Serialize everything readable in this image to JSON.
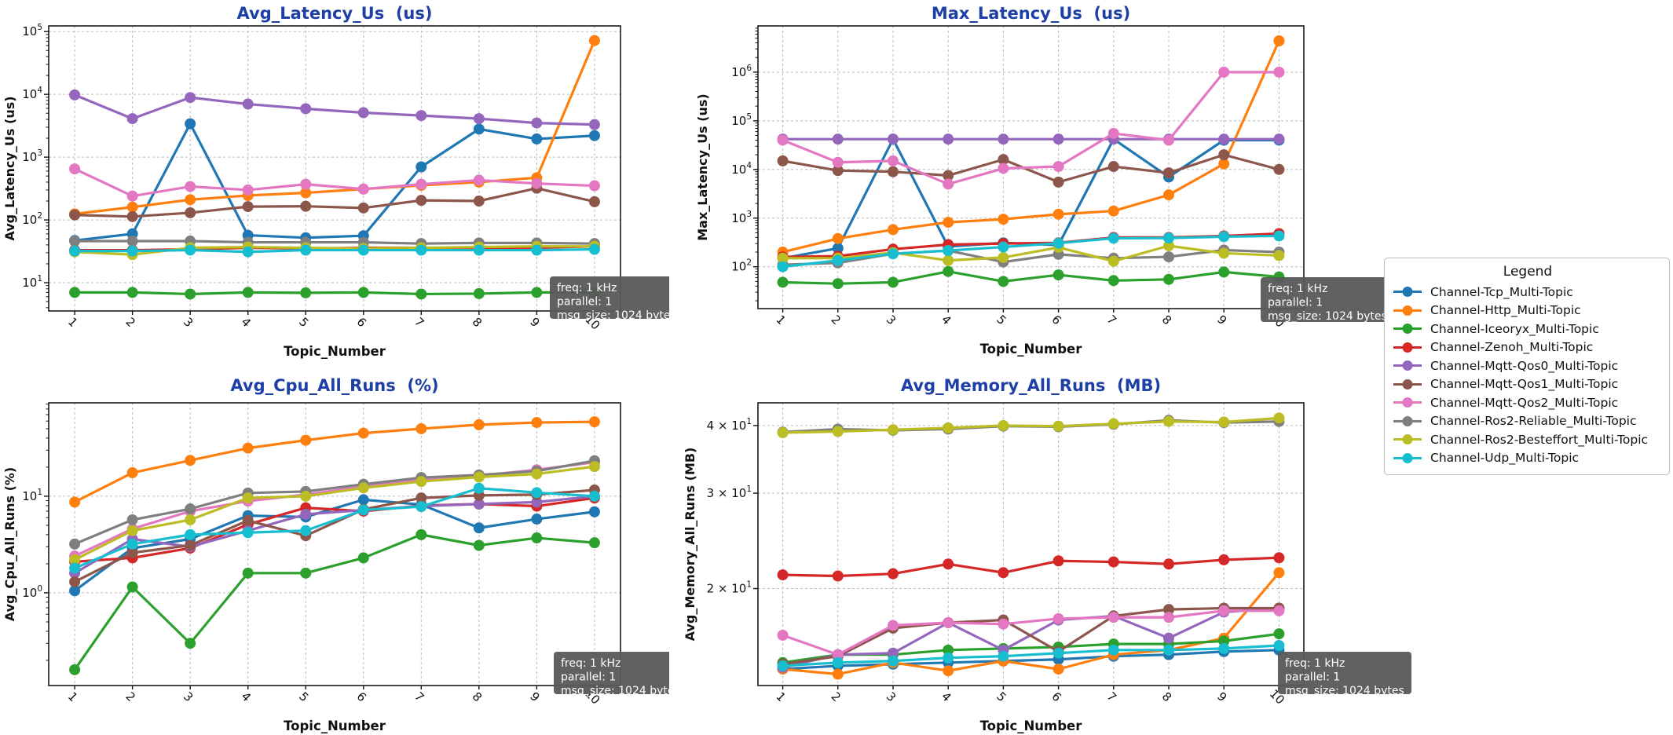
{
  "figure": {
    "title_color": "#1e3fa5",
    "annotation_lines": [
      "freq: 1 kHz",
      "parallel: 1",
      "msg_size: 1024 bytes"
    ],
    "annotation_bg": "#585858",
    "annotation_text_color": "#ffffff",
    "grid_color": "#bbbbbb",
    "frame_color": "#1a1a1a"
  },
  "legend": {
    "title": "Legend",
    "items": [
      {
        "label": "Channel-Tcp_Multi-Topic",
        "color": "#1f77b4"
      },
      {
        "label": "Channel-Http_Multi-Topic",
        "color": "#ff7f0e"
      },
      {
        "label": "Channel-Iceoryx_Multi-Topic",
        "color": "#2ca02c"
      },
      {
        "label": "Channel-Zenoh_Multi-Topic",
        "color": "#d62728"
      },
      {
        "label": "Channel-Mqtt-Qos0_Multi-Topic",
        "color": "#9467bd"
      },
      {
        "label": "Channel-Mqtt-Qos1_Multi-Topic",
        "color": "#8c564b"
      },
      {
        "label": "Channel-Mqtt-Qos2_Multi-Topic",
        "color": "#e377c2"
      },
      {
        "label": "Channel-Ros2-Reliable_Multi-Topic",
        "color": "#7f7f7f"
      },
      {
        "label": "Channel-Ros2-Besteffort_Multi-Topic",
        "color": "#bcbd22"
      },
      {
        "label": "Channel-Udp_Multi-Topic",
        "color": "#17becf"
      }
    ]
  },
  "chart_data": [
    {
      "type": "line",
      "title": "Avg_Latency_Us  (us)",
      "xlabel": "Topic_Number",
      "ylabel": "Avg_Latency_Us (us)",
      "yscale": "log",
      "grid": true,
      "x": [
        1,
        2,
        3,
        4,
        5,
        6,
        7,
        8,
        9,
        10
      ],
      "ylim_exp": [
        0.55,
        5.09
      ],
      "yticks": [
        {
          "v": 100000,
          "pre": "",
          "exp": "5"
        },
        {
          "v": 10000,
          "pre": "",
          "exp": "4"
        },
        {
          "v": 1000,
          "pre": "",
          "exp": "3"
        },
        {
          "v": 100,
          "pre": "",
          "exp": "2"
        },
        {
          "v": 10,
          "pre": "",
          "exp": "1"
        }
      ],
      "series": [
        {
          "name": "Channel-Tcp_Multi-Topic",
          "values": [
            47,
            60,
            3400,
            57,
            52,
            56,
            700,
            2800,
            1950,
            2200
          ]
        },
        {
          "name": "Channel-Http_Multi-Topic",
          "values": [
            125,
            160,
            210,
            245,
            270,
            310,
            355,
            400,
            470,
            72000
          ]
        },
        {
          "name": "Channel-Iceoryx_Multi-Topic",
          "values": [
            7,
            7,
            6.6,
            7,
            6.9,
            7,
            6.6,
            6.7,
            7,
            7
          ]
        },
        {
          "name": "Channel-Zenoh_Multi-Topic",
          "values": [
            33,
            33,
            34,
            36,
            35,
            36,
            36,
            36,
            36,
            38
          ]
        },
        {
          "name": "Channel-Mqtt-Qos0_Multi-Topic",
          "values": [
            9800,
            4100,
            8900,
            7000,
            5900,
            5100,
            4600,
            4100,
            3500,
            3300
          ]
        },
        {
          "name": "Channel-Mqtt-Qos1_Multi-Topic",
          "values": [
            120,
            113,
            130,
            163,
            165,
            155,
            205,
            200,
            320,
            195
          ]
        },
        {
          "name": "Channel-Mqtt-Qos2_Multi-Topic",
          "values": [
            650,
            240,
            340,
            300,
            370,
            310,
            370,
            430,
            380,
            350
          ]
        },
        {
          "name": "Channel-Ros2-Reliable_Multi-Topic",
          "values": [
            46,
            46,
            46,
            44,
            44,
            44,
            42,
            43,
            43,
            42
          ]
        },
        {
          "name": "Channel-Ros2-Besteffort_Multi-Topic",
          "values": [
            31,
            28,
            36,
            37,
            36,
            35,
            36,
            37,
            38,
            38
          ]
        },
        {
          "name": "Channel-Udp_Multi-Topic",
          "values": [
            32,
            32,
            33,
            31,
            33,
            33,
            33,
            33,
            33,
            34
          ]
        }
      ]
    },
    {
      "type": "line",
      "title": "Max_Latency_Us  (us)",
      "xlabel": "Topic_Number",
      "ylabel": "Max_Latency_Us (us)",
      "yscale": "log",
      "grid": true,
      "x": [
        1,
        2,
        3,
        4,
        5,
        6,
        7,
        8,
        9,
        10
      ],
      "ylim_exp": [
        1.14,
        6.95
      ],
      "yticks": [
        {
          "v": 1000000,
          "pre": "",
          "exp": "6"
        },
        {
          "v": 100000,
          "pre": "",
          "exp": "5"
        },
        {
          "v": 10000,
          "pre": "",
          "exp": "4"
        },
        {
          "v": 1000,
          "pre": "",
          "exp": "3"
        },
        {
          "v": 100,
          "pre": "",
          "exp": "2"
        }
      ],
      "series": [
        {
          "name": "Channel-Tcp_Multi-Topic",
          "values": [
            150,
            240,
            42000,
            260,
            310,
            280,
            42000,
            7000,
            40000,
            40000
          ]
        },
        {
          "name": "Channel-Http_Multi-Topic",
          "values": [
            200,
            380,
            580,
            820,
            950,
            1200,
            1400,
            3000,
            13000,
            4400000
          ]
        },
        {
          "name": "Channel-Iceoryx_Multi-Topic",
          "values": [
            48,
            45,
            48,
            80,
            50,
            68,
            52,
            55,
            78,
            62
          ]
        },
        {
          "name": "Channel-Zenoh_Multi-Topic",
          "values": [
            160,
            165,
            230,
            285,
            300,
            310,
            400,
            400,
            430,
            480
          ]
        },
        {
          "name": "Channel-Mqtt-Qos0_Multi-Topic",
          "values": [
            42000,
            42000,
            42000,
            42000,
            42000,
            42000,
            42000,
            42000,
            42000,
            42000
          ]
        },
        {
          "name": "Channel-Mqtt-Qos1_Multi-Topic",
          "values": [
            15000,
            9500,
            9000,
            7500,
            16000,
            5500,
            11500,
            8500,
            20000,
            10000
          ]
        },
        {
          "name": "Channel-Mqtt-Qos2_Multi-Topic",
          "values": [
            40000,
            14000,
            15000,
            5000,
            10500,
            11500,
            55000,
            40000,
            1000000,
            1000000
          ]
        },
        {
          "name": "Channel-Ros2-Reliable_Multi-Topic",
          "values": [
            110,
            120,
            185,
            215,
            125,
            180,
            150,
            160,
            220,
            200
          ]
        },
        {
          "name": "Channel-Ros2-Besteffort_Multi-Topic",
          "values": [
            150,
            150,
            195,
            135,
            155,
            250,
            130,
            270,
            190,
            170
          ]
        },
        {
          "name": "Channel-Udp_Multi-Topic",
          "values": [
            100,
            135,
            185,
            215,
            255,
            305,
            385,
            390,
            415,
            430
          ]
        }
      ]
    },
    {
      "type": "line",
      "title": "Avg_Cpu_All_Runs  (%)",
      "xlabel": "Topic_Number",
      "ylabel": "Avg_Cpu_All_Runs (%)",
      "yscale": "log",
      "grid": true,
      "x": [
        1,
        2,
        3,
        4,
        5,
        6,
        7,
        8,
        9,
        10
      ],
      "ylim_exp": [
        -0.96,
        1.967
      ],
      "yticks": [
        {
          "v": 10,
          "pre": "",
          "exp": "1"
        },
        {
          "v": 1,
          "pre": "",
          "exp": "0"
        }
      ],
      "series": [
        {
          "name": "Channel-Tcp_Multi-Topic",
          "values": [
            1.05,
            2.9,
            3.6,
            6.3,
            6.1,
            9.2,
            8.2,
            4.7,
            5.8,
            6.9
          ]
        },
        {
          "name": "Channel-Http_Multi-Topic",
          "values": [
            8.7,
            17.5,
            23.5,
            31.5,
            38,
            45,
            50,
            55,
            58,
            59
          ]
        },
        {
          "name": "Channel-Iceoryx_Multi-Topic",
          "values": [
            0.16,
            1.15,
            0.3,
            1.6,
            1.6,
            2.3,
            4.0,
            3.1,
            3.7,
            3.3
          ]
        },
        {
          "name": "Channel-Zenoh_Multi-Topic",
          "values": [
            2.1,
            2.3,
            2.9,
            5.1,
            7.6,
            7.0,
            8.0,
            8.3,
            7.9,
            9.6
          ]
        },
        {
          "name": "Channel-Mqtt-Qos0_Multi-Topic",
          "values": [
            1.6,
            3.6,
            3.0,
            4.4,
            6.5,
            7.2,
            7.9,
            8.3,
            8.7,
            10.0
          ]
        },
        {
          "name": "Channel-Mqtt-Qos1_Multi-Topic",
          "values": [
            1.3,
            2.6,
            3.1,
            5.6,
            3.9,
            7.3,
            9.6,
            10.2,
            10.4,
            11.6
          ]
        },
        {
          "name": "Channel-Mqtt-Qos2_Multi-Topic",
          "values": [
            2.4,
            4.6,
            7.0,
            8.9,
            10.4,
            12.6,
            14.8,
            16.3,
            18.8,
            22.5
          ]
        },
        {
          "name": "Channel-Ros2-Reliable_Multi-Topic",
          "values": [
            3.2,
            5.7,
            7.4,
            10.8,
            11.2,
            13.3,
            15.6,
            16.6,
            18.2,
            23.3
          ]
        },
        {
          "name": "Channel-Ros2-Besteffort_Multi-Topic",
          "values": [
            2.2,
            4.4,
            5.7,
            9.6,
            10.0,
            12.2,
            14.2,
            15.8,
            17.0,
            20.3
          ]
        },
        {
          "name": "Channel-Udp_Multi-Topic",
          "values": [
            1.8,
            3.2,
            4.0,
            4.2,
            4.4,
            7.2,
            7.8,
            12.1,
            10.9,
            10.0
          ]
        }
      ]
    },
    {
      "type": "line",
      "title": "Avg_Memory_All_Runs  (MB)",
      "xlabel": "Topic_Number",
      "ylabel": "Avg_Memory_All_Runs (MB)",
      "yscale": "log",
      "grid": true,
      "x": [
        1,
        2,
        3,
        4,
        5,
        6,
        7,
        8,
        9,
        10
      ],
      "ylim_exp": [
        1.122,
        1.644
      ],
      "yticks": [
        {
          "v": 40,
          "pre": "4 × ",
          "exp": "1"
        },
        {
          "v": 30,
          "pre": "3 × ",
          "exp": "1"
        },
        {
          "v": 20,
          "pre": "2 × ",
          "exp": "1"
        }
      ],
      "series": [
        {
          "name": "Channel-Tcp_Multi-Topic",
          "values": [
            14.2,
            14.4,
            14.5,
            14.6,
            14.7,
            14.8,
            15.0,
            15.1,
            15.3,
            15.4
          ]
        },
        {
          "name": "Channel-Http_Multi-Topic",
          "values": [
            14.2,
            13.9,
            14.6,
            14.1,
            14.7,
            14.2,
            15.1,
            15.4,
            16.2,
            21.4
          ]
        },
        {
          "name": "Channel-Iceoryx_Multi-Topic",
          "values": [
            14.6,
            15.1,
            15.1,
            15.4,
            15.5,
            15.6,
            15.8,
            15.8,
            16.0,
            16.5
          ]
        },
        {
          "name": "Channel-Zenoh_Multi-Topic",
          "values": [
            21.2,
            21.1,
            21.3,
            22.2,
            21.4,
            22.5,
            22.4,
            22.2,
            22.6,
            22.8
          ]
        },
        {
          "name": "Channel-Mqtt-Qos0_Multi-Topic",
          "values": [
            14.3,
            15.1,
            15.2,
            17.3,
            15.4,
            17.5,
            17.8,
            16.2,
            18.1,
            18.4
          ]
        },
        {
          "name": "Channel-Mqtt-Qos1_Multi-Topic",
          "values": [
            14.5,
            15.0,
            16.9,
            17.3,
            17.5,
            15.3,
            17.8,
            18.3,
            18.4,
            18.4
          ]
        },
        {
          "name": "Channel-Mqtt-Qos2_Multi-Topic",
          "values": [
            16.4,
            15.1,
            17.1,
            17.3,
            17.2,
            17.6,
            17.7,
            17.7,
            18.2,
            18.2
          ]
        },
        {
          "name": "Channel-Ros2-Reliable_Multi-Topic",
          "values": [
            38.9,
            39.4,
            39.2,
            39.4,
            39.9,
            39.8,
            40.2,
            40.9,
            40.5,
            40.7
          ]
        },
        {
          "name": "Channel-Ros2-Besteffort_Multi-Topic",
          "values": [
            38.8,
            39.0,
            39.3,
            39.6,
            40.0,
            39.9,
            40.3,
            40.7,
            40.6,
            41.3
          ]
        },
        {
          "name": "Channel-Udp_Multi-Topic",
          "values": [
            14.4,
            14.6,
            14.7,
            14.9,
            15.0,
            15.2,
            15.4,
            15.4,
            15.5,
            15.7
          ]
        }
      ]
    }
  ]
}
